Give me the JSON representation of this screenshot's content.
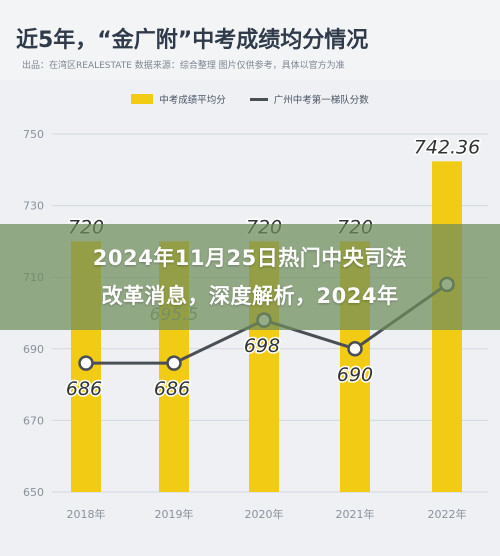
{
  "header": {
    "title": "近5年，“金广附”中考成绩均分情况",
    "source": "出品：在湾区REALESTATE  数据来源：综合整理 图片仅供参考，具体以官方为准"
  },
  "overlay": {
    "line1": "2024年11月25日热门中央司法",
    "line2": "改革消息，深度解析，2024年"
  },
  "colors": {
    "bar": "#f2cc14",
    "line": "#4a4f55",
    "grid": "#d3d8df",
    "axis_text": "#8a929e",
    "label_text": "#333333"
  },
  "chart_data": {
    "type": "bar",
    "categories": [
      "2018年",
      "2019年",
      "2020年",
      "2021年",
      "2022年"
    ],
    "ylim": [
      650,
      750
    ],
    "yticks": [
      650,
      670,
      690,
      710,
      730,
      750
    ],
    "series": [
      {
        "name": "中考成绩平均分",
        "type": "bar",
        "values": [
          720,
          720,
          720,
          720,
          742.36
        ],
        "labels": [
          "720",
          "",
          "720",
          "720",
          "742.36"
        ]
      },
      {
        "name": "广州中考第一梯队分数",
        "type": "line",
        "values": [
          686,
          686,
          698,
          690,
          708
        ],
        "labels": [
          "686",
          "686",
          "698",
          "690",
          ""
        ]
      }
    ],
    "partial_label": "695.5",
    "grid": true,
    "legend": "top-center",
    "title": "近5年，“金广附”中考成绩均分情况"
  }
}
